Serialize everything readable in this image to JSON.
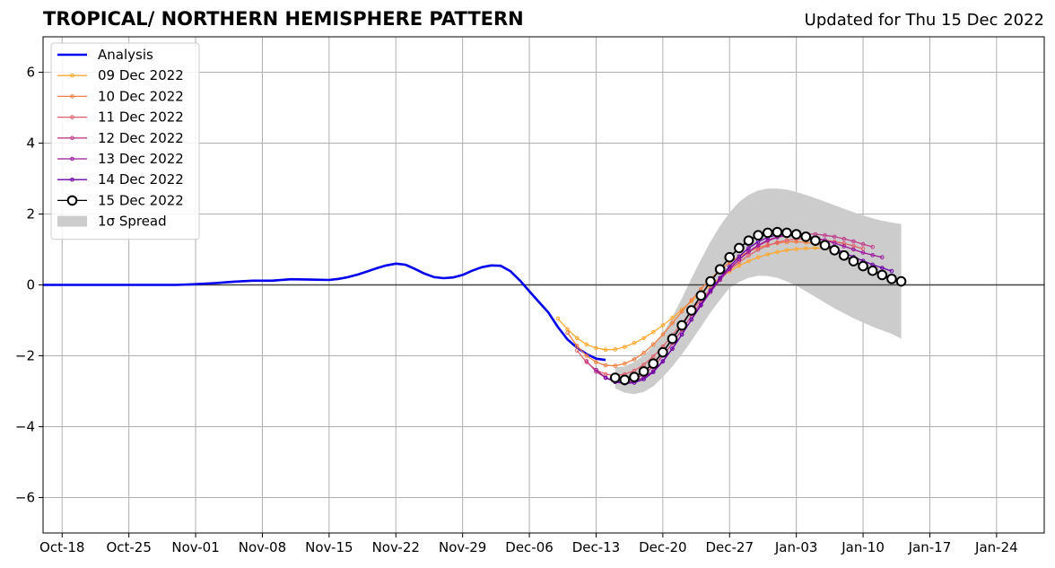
{
  "chart_data": {
    "type": "line",
    "title": "TROPICAL/ NORTHERN HEMISPHERE PATTERN",
    "subtitle": "Updated for Thu 15 Dec 2022",
    "xlabel": "",
    "ylabel": "",
    "x_ticks": [
      "Oct-18",
      "Oct-25",
      "Nov-01",
      "Nov-08",
      "Nov-15",
      "Nov-22",
      "Nov-29",
      "Dec-06",
      "Dec-13",
      "Dec-20",
      "Dec-27",
      "Jan-03",
      "Jan-10",
      "Jan-17",
      "Jan-24"
    ],
    "xlim": [
      "2022-10-16",
      "2023-01-29"
    ],
    "y_ticks": [
      -6,
      -4,
      -2,
      0,
      2,
      4,
      6
    ],
    "y_tick_labels": [
      "−6",
      "−4",
      "−2",
      "0",
      "2",
      "4",
      "6"
    ],
    "ylim": [
      -7,
      7
    ],
    "grid": true,
    "legend_position": "top-left",
    "series": [
      {
        "name": "Analysis",
        "color": "#0000ee",
        "style": "analysis",
        "x": [
          "2022-10-16",
          "2022-10-20",
          "2022-10-25",
          "2022-10-30",
          "2022-11-01",
          "2022-11-03",
          "2022-11-05",
          "2022-11-07",
          "2022-11-09",
          "2022-11-11",
          "2022-11-13",
          "2022-11-15",
          "2022-11-16",
          "2022-11-17",
          "2022-11-18",
          "2022-11-19",
          "2022-11-20",
          "2022-11-21",
          "2022-11-22",
          "2022-11-23",
          "2022-11-24",
          "2022-11-25",
          "2022-11-26",
          "2022-11-27",
          "2022-11-28",
          "2022-11-29",
          "2022-11-30",
          "2022-12-01",
          "2022-12-02",
          "2022-12-03",
          "2022-12-04",
          "2022-12-05",
          "2022-12-06",
          "2022-12-07",
          "2022-12-08",
          "2022-12-09",
          "2022-12-10",
          "2022-12-11",
          "2022-12-12",
          "2022-12-13",
          "2022-12-14"
        ],
        "y": [
          0.0,
          0.0,
          0.0,
          0.0,
          0.02,
          0.05,
          0.09,
          0.12,
          0.12,
          0.16,
          0.15,
          0.14,
          0.17,
          0.22,
          0.29,
          0.38,
          0.47,
          0.55,
          0.6,
          0.57,
          0.45,
          0.32,
          0.22,
          0.19,
          0.21,
          0.28,
          0.4,
          0.5,
          0.55,
          0.54,
          0.39,
          0.13,
          -0.18,
          -0.48,
          -0.78,
          -1.19,
          -1.54,
          -1.77,
          -1.95,
          -2.08,
          -2.12
        ]
      },
      {
        "name": "09 Dec 2022",
        "color": "#ffa82e",
        "style": "small",
        "x": [
          "2022-12-09",
          "2022-12-10",
          "2022-12-11",
          "2022-12-12",
          "2022-12-13",
          "2022-12-14",
          "2022-12-15",
          "2022-12-16",
          "2022-12-17",
          "2022-12-18",
          "2022-12-19",
          "2022-12-20",
          "2022-12-21",
          "2022-12-22",
          "2022-12-23",
          "2022-12-24",
          "2022-12-25",
          "2022-12-26",
          "2022-12-27",
          "2022-12-28",
          "2022-12-29",
          "2022-12-30",
          "2022-12-31",
          "2023-01-01",
          "2023-01-02",
          "2023-01-03",
          "2023-01-04",
          "2023-01-05",
          "2023-01-06",
          "2023-01-07"
        ],
        "y": [
          -0.95,
          -1.25,
          -1.5,
          -1.68,
          -1.78,
          -1.83,
          -1.82,
          -1.75,
          -1.64,
          -1.5,
          -1.33,
          -1.14,
          -0.93,
          -0.7,
          -0.46,
          -0.23,
          0.0,
          0.2,
          0.38,
          0.54,
          0.67,
          0.78,
          0.86,
          0.93,
          0.98,
          1.01,
          1.03,
          1.04,
          1.03,
          1.0
        ]
      },
      {
        "name": "10 Dec 2022",
        "color": "#f27e42",
        "style": "small",
        "x": [
          "2022-12-10",
          "2022-12-11",
          "2022-12-12",
          "2022-12-13",
          "2022-12-14",
          "2022-12-15",
          "2022-12-16",
          "2022-12-17",
          "2022-12-18",
          "2022-12-19",
          "2022-12-20",
          "2022-12-21",
          "2022-12-22",
          "2022-12-23",
          "2022-12-24",
          "2022-12-25",
          "2022-12-26",
          "2022-12-27",
          "2022-12-28",
          "2022-12-29",
          "2022-12-30",
          "2022-12-31",
          "2023-01-01",
          "2023-01-02",
          "2023-01-03",
          "2023-01-04",
          "2023-01-05",
          "2023-01-06",
          "2023-01-07",
          "2023-01-08"
        ],
        "y": [
          -1.35,
          -1.72,
          -2.0,
          -2.18,
          -2.27,
          -2.28,
          -2.22,
          -2.1,
          -1.92,
          -1.68,
          -1.4,
          -1.08,
          -0.75,
          -0.43,
          -0.12,
          0.17,
          0.42,
          0.63,
          0.8,
          0.94,
          1.05,
          1.13,
          1.18,
          1.21,
          1.22,
          1.2,
          1.16,
          1.1,
          1.02,
          0.92
        ]
      },
      {
        "name": "11 Dec 2022",
        "color": "#e0616c",
        "style": "small",
        "x": [
          "2022-12-11",
          "2022-12-12",
          "2022-12-13",
          "2022-12-14",
          "2022-12-15",
          "2022-12-16",
          "2022-12-17",
          "2022-12-18",
          "2022-12-19",
          "2022-12-20",
          "2022-12-21",
          "2022-12-22",
          "2022-12-23",
          "2022-12-24",
          "2022-12-25",
          "2022-12-26",
          "2022-12-27",
          "2022-12-28",
          "2022-12-29",
          "2022-12-30",
          "2022-12-31",
          "2023-01-01",
          "2023-01-02",
          "2023-01-03",
          "2023-01-04",
          "2023-01-05",
          "2023-01-06",
          "2023-01-07",
          "2023-01-08",
          "2023-01-09",
          "2023-01-10"
        ],
        "y": [
          -1.85,
          -2.18,
          -2.4,
          -2.52,
          -2.56,
          -2.52,
          -2.42,
          -2.25,
          -2.02,
          -1.74,
          -1.42,
          -1.08,
          -0.74,
          -0.42,
          -0.12,
          0.16,
          0.42,
          0.64,
          0.83,
          0.99,
          1.11,
          1.2,
          1.26,
          1.29,
          1.3,
          1.29,
          1.26,
          1.22,
          1.17,
          1.1,
          1.02
        ]
      },
      {
        "name": "12 Dec 2022",
        "color": "#c23e8c",
        "style": "small",
        "x": [
          "2022-12-12",
          "2022-12-13",
          "2022-12-14",
          "2022-12-15",
          "2022-12-16",
          "2022-12-17",
          "2022-12-18",
          "2022-12-19",
          "2022-12-20",
          "2022-12-21",
          "2022-12-22",
          "2022-12-23",
          "2022-12-24",
          "2022-12-25",
          "2022-12-26",
          "2022-12-27",
          "2022-12-28",
          "2022-12-29",
          "2022-12-30",
          "2022-12-31",
          "2023-01-01",
          "2023-01-02",
          "2023-01-03",
          "2023-01-04",
          "2023-01-05",
          "2023-01-06",
          "2023-01-07",
          "2023-01-08",
          "2023-01-09",
          "2023-01-10",
          "2023-01-11"
        ],
        "y": [
          -2.15,
          -2.45,
          -2.62,
          -2.7,
          -2.72,
          -2.66,
          -2.52,
          -2.3,
          -2.0,
          -1.65,
          -1.27,
          -0.88,
          -0.5,
          -0.15,
          0.17,
          0.46,
          0.72,
          0.93,
          1.1,
          1.24,
          1.34,
          1.4,
          1.43,
          1.44,
          1.43,
          1.4,
          1.36,
          1.3,
          1.23,
          1.15,
          1.07
        ]
      },
      {
        "name": "13 Dec 2022",
        "color": "#9c179e",
        "style": "small",
        "x": [
          "2022-12-13",
          "2022-12-14",
          "2022-12-15",
          "2022-12-16",
          "2022-12-17",
          "2022-12-18",
          "2022-12-19",
          "2022-12-20",
          "2022-12-21",
          "2022-12-22",
          "2022-12-23",
          "2022-12-24",
          "2022-12-25",
          "2022-12-26",
          "2022-12-27",
          "2022-12-28",
          "2022-12-29",
          "2022-12-30",
          "2022-12-31",
          "2023-01-01",
          "2023-01-02",
          "2023-01-03",
          "2023-01-04",
          "2023-01-05",
          "2023-01-06",
          "2023-01-07",
          "2023-01-08",
          "2023-01-09",
          "2023-01-10",
          "2023-01-11",
          "2023-01-12"
        ],
        "y": [
          -2.4,
          -2.62,
          -2.72,
          -2.75,
          -2.72,
          -2.62,
          -2.43,
          -2.15,
          -1.8,
          -1.4,
          -0.98,
          -0.58,
          -0.2,
          0.14,
          0.45,
          0.72,
          0.94,
          1.12,
          1.26,
          1.35,
          1.4,
          1.41,
          1.38,
          1.33,
          1.26,
          1.18,
          1.09,
          1.0,
          0.91,
          0.84,
          0.78
        ]
      },
      {
        "name": "14 Dec 2022",
        "color": "#6a00a8",
        "style": "small",
        "x": [
          "2022-12-14",
          "2022-12-15",
          "2022-12-16",
          "2022-12-17",
          "2022-12-18",
          "2022-12-19",
          "2022-12-20",
          "2022-12-21",
          "2022-12-22",
          "2022-12-23",
          "2022-12-24",
          "2022-12-25",
          "2022-12-26",
          "2022-12-27",
          "2022-12-28",
          "2022-12-29",
          "2022-12-30",
          "2022-12-31",
          "2023-01-01",
          "2023-01-02",
          "2023-01-03",
          "2023-01-04",
          "2023-01-05",
          "2023-01-06",
          "2023-01-07",
          "2023-01-08",
          "2023-01-09",
          "2023-01-10",
          "2023-01-11",
          "2023-01-12",
          "2023-01-13"
        ],
        "y": [
          -2.62,
          -2.74,
          -2.78,
          -2.76,
          -2.66,
          -2.46,
          -2.16,
          -1.8,
          -1.4,
          -0.98,
          -0.56,
          -0.16,
          0.2,
          0.52,
          0.8,
          1.04,
          1.22,
          1.34,
          1.41,
          1.42,
          1.4,
          1.34,
          1.26,
          1.15,
          1.03,
          0.91,
          0.79,
          0.68,
          0.57,
          0.48,
          0.39
        ]
      },
      {
        "name": "15 Dec 2022",
        "color": "#000000",
        "style": "large",
        "x": [
          "2022-12-15",
          "2022-12-16",
          "2022-12-17",
          "2022-12-18",
          "2022-12-19",
          "2022-12-20",
          "2022-12-21",
          "2022-12-22",
          "2022-12-23",
          "2022-12-24",
          "2022-12-25",
          "2022-12-26",
          "2022-12-27",
          "2022-12-28",
          "2022-12-29",
          "2022-12-30",
          "2022-12-31",
          "2023-01-01",
          "2023-01-02",
          "2023-01-03",
          "2023-01-04",
          "2023-01-05",
          "2023-01-06",
          "2023-01-07",
          "2023-01-08",
          "2023-01-09",
          "2023-01-10",
          "2023-01-11",
          "2023-01-12",
          "2023-01-13",
          "2023-01-14"
        ],
        "y": [
          -2.62,
          -2.68,
          -2.6,
          -2.44,
          -2.22,
          -1.9,
          -1.52,
          -1.14,
          -0.72,
          -0.3,
          0.1,
          0.44,
          0.78,
          1.04,
          1.25,
          1.4,
          1.47,
          1.49,
          1.47,
          1.43,
          1.36,
          1.25,
          1.12,
          0.98,
          0.83,
          0.67,
          0.53,
          0.4,
          0.28,
          0.17,
          0.1
        ]
      }
    ],
    "spread": {
      "name": "1σ Spread",
      "color": "#cccccc",
      "x": [
        "2022-12-15",
        "2022-12-16",
        "2022-12-17",
        "2022-12-18",
        "2022-12-19",
        "2022-12-20",
        "2022-12-21",
        "2022-12-22",
        "2022-12-23",
        "2022-12-24",
        "2022-12-25",
        "2022-12-26",
        "2022-12-27",
        "2022-12-28",
        "2022-12-29",
        "2022-12-30",
        "2022-12-31",
        "2023-01-01",
        "2023-01-02",
        "2023-01-03",
        "2023-01-04",
        "2023-01-05",
        "2023-01-06",
        "2023-01-07",
        "2023-01-08",
        "2023-01-09",
        "2023-01-10",
        "2023-01-11",
        "2023-01-12",
        "2023-01-13",
        "2023-01-14"
      ],
      "upper": [
        -2.32,
        -2.3,
        -2.18,
        -1.98,
        -1.72,
        -1.36,
        -0.9,
        -0.38,
        0.18,
        0.72,
        1.22,
        1.66,
        2.04,
        2.34,
        2.54,
        2.66,
        2.72,
        2.72,
        2.69,
        2.62,
        2.54,
        2.45,
        2.35,
        2.25,
        2.15,
        2.05,
        1.96,
        1.88,
        1.81,
        1.76,
        1.72
      ],
      "lower": [
        -2.92,
        -3.04,
        -3.08,
        -3.02,
        -2.86,
        -2.6,
        -2.3,
        -1.96,
        -1.58,
        -1.18,
        -0.78,
        -0.42,
        -0.08,
        0.08,
        0.2,
        0.26,
        0.25,
        0.2,
        0.1,
        -0.02,
        -0.18,
        -0.34,
        -0.5,
        -0.66,
        -0.8,
        -0.94,
        -1.06,
        -1.18,
        -1.28,
        -1.38,
        -1.52
      ]
    }
  }
}
